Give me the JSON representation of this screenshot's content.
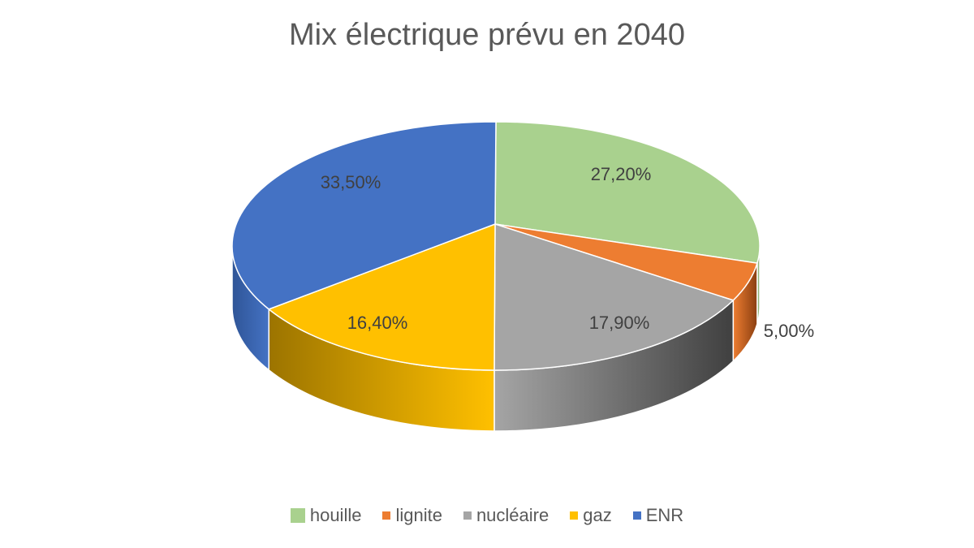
{
  "chart_data": {
    "type": "pie",
    "title": "Mix électrique prévu en 2040",
    "categories": [
      "houille",
      "lignite",
      "nucléaire",
      "gaz",
      "ENR"
    ],
    "values": [
      27.2,
      5.0,
      17.9,
      16.4,
      33.5
    ],
    "data_labels": [
      "27,20%",
      "5,00%",
      "17,90%",
      "16,40%",
      "33,50%"
    ],
    "colors": [
      "#a9d18e",
      "#ed7d31",
      "#a5a5a5",
      "#ffc000",
      "#4472c4"
    ],
    "side_colors": [
      "#7a9a66",
      "#8a3e10",
      "#404040",
      "#9c7400",
      "#2f5597"
    ],
    "legend_position": "bottom",
    "style": "3d"
  }
}
